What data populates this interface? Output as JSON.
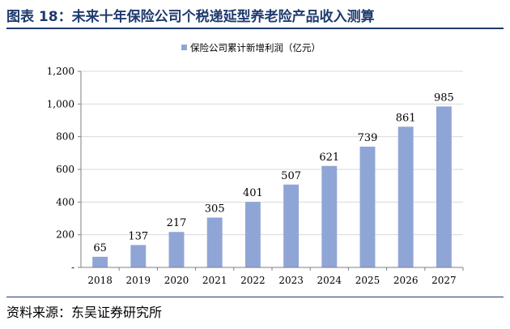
{
  "header": {
    "title": "图表 18：未来十年保险公司个税递延型养老险产品收入测算"
  },
  "footer": {
    "source": "资料来源：东吴证券研究所"
  },
  "colors": {
    "bar": "#8fa5d6",
    "title": "#1f3a6e",
    "grid": "#d9d9d9",
    "axis": "#7f7f7f"
  },
  "chart_data": {
    "type": "bar",
    "categories": [
      "2018",
      "2019",
      "2020",
      "2021",
      "2022",
      "2023",
      "2024",
      "2025",
      "2026",
      "2027"
    ],
    "series": [
      {
        "name": "保险公司累计新增利润（亿元）",
        "values": [
          65,
          137,
          217,
          305,
          401,
          507,
          621,
          739,
          861,
          985
        ]
      }
    ],
    "ylim": [
      0,
      1200
    ],
    "yticks": [
      0,
      200,
      400,
      600,
      800,
      1000,
      1200
    ],
    "ytick_labels": [
      "-",
      "200",
      "400",
      "600",
      "800",
      "1,000",
      "1,200"
    ],
    "data_labels": true,
    "grid": true,
    "legend": "top"
  }
}
